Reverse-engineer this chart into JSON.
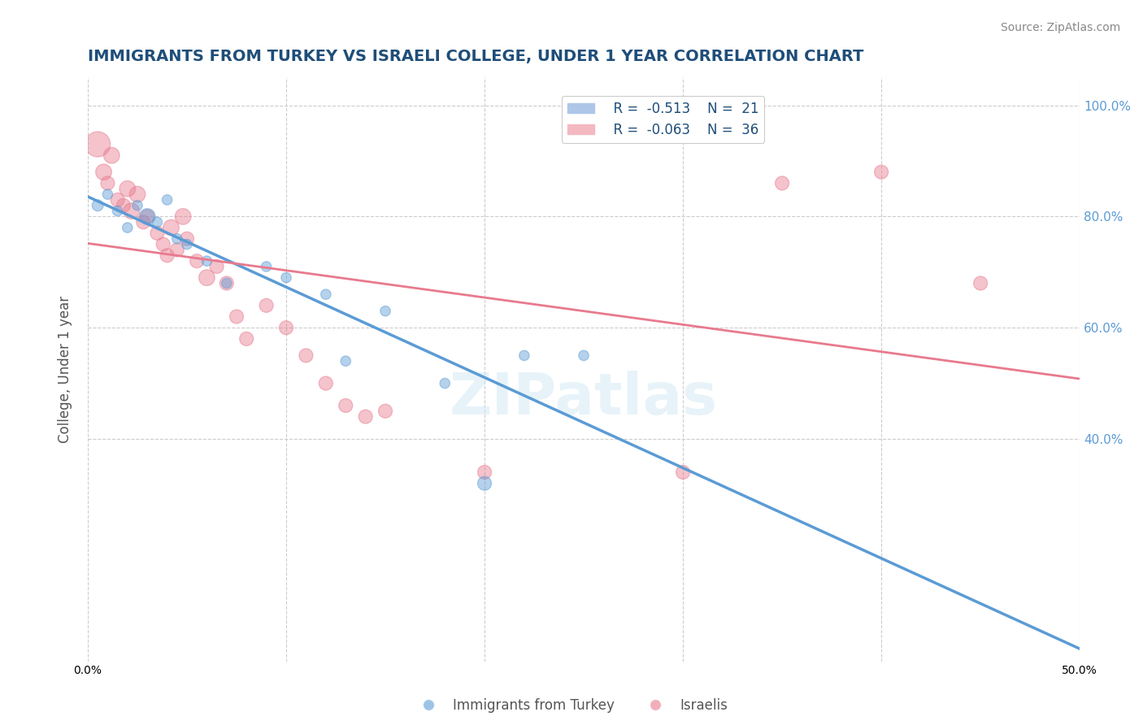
{
  "title": "IMMIGRANTS FROM TURKEY VS ISRAELI COLLEGE, UNDER 1 YEAR CORRELATION CHART",
  "source": "Source: ZipAtlas.com",
  "xlabel_bottom": [
    "0.0%",
    "50.0%"
  ],
  "ylabel": "College, Under 1 year",
  "yaxis_labels": [
    "100.0%",
    "80.0%",
    "60.0%",
    "40.0%"
  ],
  "xlim": [
    0.0,
    0.5
  ],
  "ylim": [
    0.0,
    1.05
  ],
  "legend_labels": [
    "Immigrants from Turkey",
    "Israelis"
  ],
  "legend_r_n": [
    {
      "R": "-0.513",
      "N": "21",
      "color": "#aec6e8"
    },
    {
      "R": "-0.063",
      "N": "36",
      "color": "#f4b8c1"
    }
  ],
  "blue_color": "#5b9bd5",
  "pink_color": "#e87a8e",
  "title_color": "#1f4e79",
  "axis_label_color": "#5b9bd5",
  "watermark": "ZIPatlas",
  "turkey_points": [
    [
      0.005,
      0.82
    ],
    [
      0.01,
      0.84
    ],
    [
      0.015,
      0.81
    ],
    [
      0.02,
      0.78
    ],
    [
      0.025,
      0.82
    ],
    [
      0.03,
      0.8
    ],
    [
      0.035,
      0.79
    ],
    [
      0.04,
      0.83
    ],
    [
      0.045,
      0.76
    ],
    [
      0.05,
      0.75
    ],
    [
      0.06,
      0.72
    ],
    [
      0.07,
      0.68
    ],
    [
      0.09,
      0.71
    ],
    [
      0.1,
      0.69
    ],
    [
      0.12,
      0.66
    ],
    [
      0.13,
      0.54
    ],
    [
      0.15,
      0.63
    ],
    [
      0.18,
      0.5
    ],
    [
      0.2,
      0.32
    ],
    [
      0.22,
      0.55
    ],
    [
      0.25,
      0.55
    ]
  ],
  "israeli_points": [
    [
      0.005,
      0.93
    ],
    [
      0.008,
      0.88
    ],
    [
      0.01,
      0.86
    ],
    [
      0.012,
      0.91
    ],
    [
      0.015,
      0.83
    ],
    [
      0.018,
      0.82
    ],
    [
      0.02,
      0.85
    ],
    [
      0.022,
      0.81
    ],
    [
      0.025,
      0.84
    ],
    [
      0.028,
      0.79
    ],
    [
      0.03,
      0.8
    ],
    [
      0.035,
      0.77
    ],
    [
      0.038,
      0.75
    ],
    [
      0.04,
      0.73
    ],
    [
      0.042,
      0.78
    ],
    [
      0.045,
      0.74
    ],
    [
      0.048,
      0.8
    ],
    [
      0.05,
      0.76
    ],
    [
      0.055,
      0.72
    ],
    [
      0.06,
      0.69
    ],
    [
      0.065,
      0.71
    ],
    [
      0.07,
      0.68
    ],
    [
      0.075,
      0.62
    ],
    [
      0.08,
      0.58
    ],
    [
      0.09,
      0.64
    ],
    [
      0.1,
      0.6
    ],
    [
      0.11,
      0.55
    ],
    [
      0.12,
      0.5
    ],
    [
      0.13,
      0.46
    ],
    [
      0.14,
      0.44
    ],
    [
      0.15,
      0.45
    ],
    [
      0.2,
      0.34
    ],
    [
      0.3,
      0.34
    ],
    [
      0.35,
      0.86
    ],
    [
      0.4,
      0.88
    ],
    [
      0.45,
      0.68
    ]
  ],
  "turkey_sizes": [
    100,
    80,
    80,
    80,
    80,
    200,
    80,
    80,
    80,
    80,
    80,
    80,
    80,
    80,
    80,
    80,
    80,
    80,
    150,
    80,
    80
  ],
  "israeli_sizes": [
    500,
    200,
    150,
    200,
    150,
    150,
    200,
    200,
    200,
    150,
    150,
    150,
    150,
    150,
    200,
    150,
    200,
    150,
    150,
    200,
    150,
    150,
    150,
    150,
    150,
    150,
    150,
    150,
    150,
    150,
    150,
    150,
    150,
    150,
    150,
    150
  ],
  "grid_color": "#cccccc",
  "bg_color": "#ffffff",
  "plot_bg_color": "#ffffff"
}
